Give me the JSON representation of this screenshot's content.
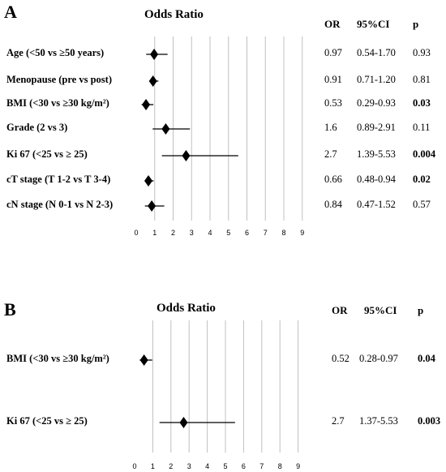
{
  "colors": {
    "text": "#000000",
    "gridline": "#c0c0c0",
    "marker": "#000000"
  },
  "chart_data": [
    {
      "type": "forest",
      "panel": "A",
      "title": "Odds Ratio",
      "x_ticks": [
        "0",
        "1",
        "2",
        "3",
        "4",
        "5",
        "6",
        "7",
        "8",
        "9"
      ],
      "xlim": [
        0,
        9
      ],
      "columns": [
        "OR",
        "95%CI",
        "p"
      ],
      "rows": [
        {
          "label": "Age (<50 vs ≥50 years)",
          "or": 0.97,
          "ci_low": 0.54,
          "ci_high": 1.7,
          "or_text": "0.97",
          "ci_text": "0.54-1.70",
          "p_text": "0.93",
          "p_bold": false
        },
        {
          "label": "Menopause (pre vs post)",
          "or": 0.91,
          "ci_low": 0.71,
          "ci_high": 1.2,
          "or_text": "0.91",
          "ci_text": "0.71-1.20",
          "p_text": "0.81",
          "p_bold": false
        },
        {
          "label": "BMI (<30 vs ≥30 kg/m²)",
          "or": 0.53,
          "ci_low": 0.29,
          "ci_high": 0.93,
          "or_text": "0.53",
          "ci_text": "0.29-0.93",
          "p_text": "0.03",
          "p_bold": true
        },
        {
          "label": "Grade (2 vs 3)",
          "or": 1.6,
          "ci_low": 0.89,
          "ci_high": 2.91,
          "or_text": "1.6",
          "ci_text": "0.89-2.91",
          "p_text": "0.11",
          "p_bold": false
        },
        {
          "label": "Ki 67 (<25 vs ≥ 25)",
          "or": 2.7,
          "ci_low": 1.39,
          "ci_high": 5.53,
          "or_text": "2.7",
          "ci_text": "1.39-5.53",
          "p_text": "0.004",
          "p_bold": true
        },
        {
          "label": "cT stage (T 1-2 vs T 3-4)",
          "or": 0.66,
          "ci_low": 0.48,
          "ci_high": 0.94,
          "or_text": "0.66",
          "ci_text": "0.48-0.94",
          "p_text": "0.02",
          "p_bold": true
        },
        {
          "label": "cN stage (N 0-1 vs N 2-3)",
          "or": 0.84,
          "ci_low": 0.47,
          "ci_high": 1.52,
          "or_text": "0.84",
          "ci_text": "0.47-1.52",
          "p_text": "0.57",
          "p_bold": false
        }
      ]
    },
    {
      "type": "forest",
      "panel": "B",
      "title": "Odds Ratio",
      "x_ticks": [
        "0",
        "1",
        "2",
        "3",
        "4",
        "5",
        "6",
        "7",
        "8",
        "9"
      ],
      "xlim": [
        0,
        9
      ],
      "columns": [
        "OR",
        "95%CI",
        "p"
      ],
      "rows": [
        {
          "label": "BMI (<30 vs ≥30 kg/m²)",
          "or": 0.52,
          "ci_low": 0.28,
          "ci_high": 0.97,
          "or_text": "0.52",
          "ci_text": "0.28-0.97",
          "p_text": "0.04",
          "p_bold": true
        },
        {
          "label": "Ki 67 (<25 vs ≥ 25)",
          "or": 2.7,
          "ci_low": 1.37,
          "ci_high": 5.53,
          "or_text": "2.7",
          "ci_text": "1.37-5.53",
          "p_text": "0.003",
          "p_bold": true
        }
      ]
    }
  ]
}
